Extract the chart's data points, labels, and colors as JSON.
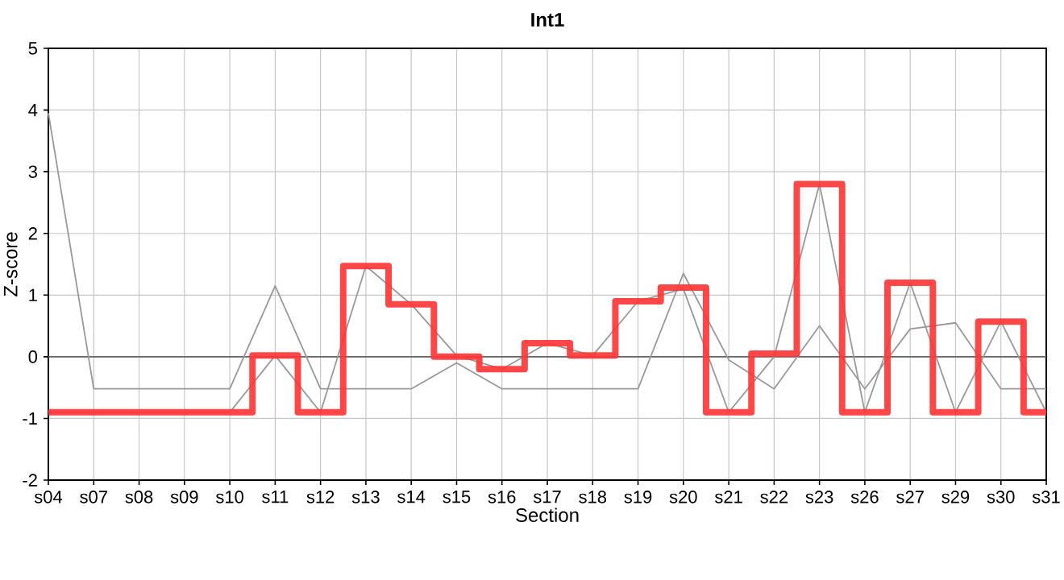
{
  "chart_data": {
    "type": "line",
    "title": "Int1",
    "xlabel": "Section",
    "ylabel": "Z-score",
    "categories": [
      "s04",
      "s07",
      "s08",
      "s09",
      "s10",
      "s11",
      "s12",
      "s13",
      "s14",
      "s15",
      "s16",
      "s17",
      "s18",
      "s19",
      "s20",
      "s21",
      "s22",
      "s23",
      "s26",
      "s27",
      "s29",
      "s30",
      "s31"
    ],
    "series": [
      {
        "color": "#999999",
        "values": [
          3.95,
          -0.52,
          -0.52,
          -0.52,
          -0.52,
          1.15,
          -0.52,
          -0.52,
          -0.52,
          -0.1,
          -0.52,
          -0.52,
          -0.52,
          -0.52,
          1.35,
          -0.05,
          -0.52,
          0.5,
          -0.52,
          0.45,
          0.55,
          -0.52,
          -0.52
        ]
      },
      {
        "color": "#999999",
        "values": [
          -0.9,
          -0.9,
          -0.9,
          null,
          -0.9,
          0.02,
          -0.9,
          1.47,
          0.85,
          0.02,
          -0.2,
          0.22,
          0.02,
          0.9,
          1.1,
          -0.9,
          0.0,
          2.8,
          -0.9,
          1.2,
          -0.9,
          0.57,
          -0.9
        ]
      },
      {
        "type": "step",
        "color": "#ff3333",
        "values": [
          -0.9,
          -0.9,
          -0.9,
          -0.9,
          -0.9,
          0.02,
          -0.9,
          1.47,
          0.85,
          0.0,
          -0.2,
          0.22,
          0.02,
          0.9,
          1.12,
          -0.9,
          0.05,
          2.8,
          -0.9,
          1.2,
          -0.9,
          0.57,
          -0.9
        ]
      }
    ],
    "ylim": [
      -2,
      5
    ],
    "yticks": [
      -2,
      -1,
      0,
      1,
      2,
      3,
      4,
      5
    ],
    "grid": true,
    "ref_lines": [
      {
        "axis": "y",
        "value": 0,
        "color": "#666666"
      }
    ]
  }
}
